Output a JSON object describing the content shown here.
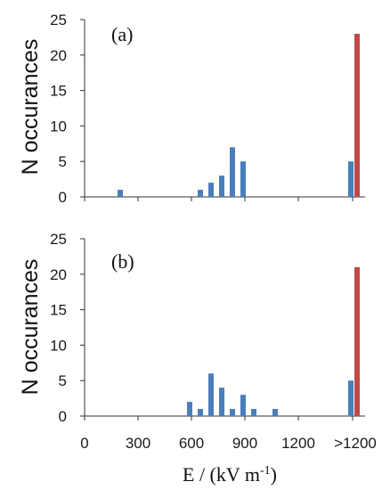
{
  "chart_data": [
    {
      "type": "bar",
      "panel_label": "(a)",
      "ylabel": "N occurances",
      "ylim": [
        0,
        25
      ],
      "yticks": [
        "0",
        "5",
        "10",
        "15",
        "20",
        "25"
      ],
      "xlabel": "",
      "grid": false,
      "series": [
        {
          "color": "#4a7ebb",
          "points": [
            {
              "x": 200,
              "y": 1
            },
            {
              "x": 650,
              "y": 1
            },
            {
              "x": 710,
              "y": 2
            },
            {
              "x": 770,
              "y": 3
            },
            {
              "x": 830,
              "y": 7
            },
            {
              "x": 890,
              "y": 5
            },
            {
              "x": ">1200",
              "y": 5
            }
          ]
        },
        {
          "color": "#be4b48",
          "points": [
            {
              "x": ">1200",
              "y": 23
            }
          ]
        }
      ]
    },
    {
      "type": "bar",
      "panel_label": "(b)",
      "ylabel": "N occurances",
      "ylim": [
        0,
        25
      ],
      "yticks": [
        "0",
        "5",
        "10",
        "15",
        "20",
        "25"
      ],
      "xlabel": "E / (kV m-1)",
      "xticks": [
        "0",
        "300",
        "600",
        "900",
        "1200",
        ">1200"
      ],
      "grid": false,
      "series": [
        {
          "color": "#4a7ebb",
          "points": [
            {
              "x": 590,
              "y": 2
            },
            {
              "x": 650,
              "y": 1
            },
            {
              "x": 710,
              "y": 6
            },
            {
              "x": 770,
              "y": 4
            },
            {
              "x": 830,
              "y": 1
            },
            {
              "x": 890,
              "y": 3
            },
            {
              "x": 950,
              "y": 1
            },
            {
              "x": 1070,
              "y": 1
            },
            {
              "x": ">1200",
              "y": 5
            }
          ]
        },
        {
          "color": "#be4b48",
          "points": [
            {
              "x": ">1200",
              "y": 21
            }
          ]
        }
      ]
    }
  ],
  "xlabel_text": {
    "main": "E / (kV m",
    "superscript": "-1",
    "close": ")"
  }
}
